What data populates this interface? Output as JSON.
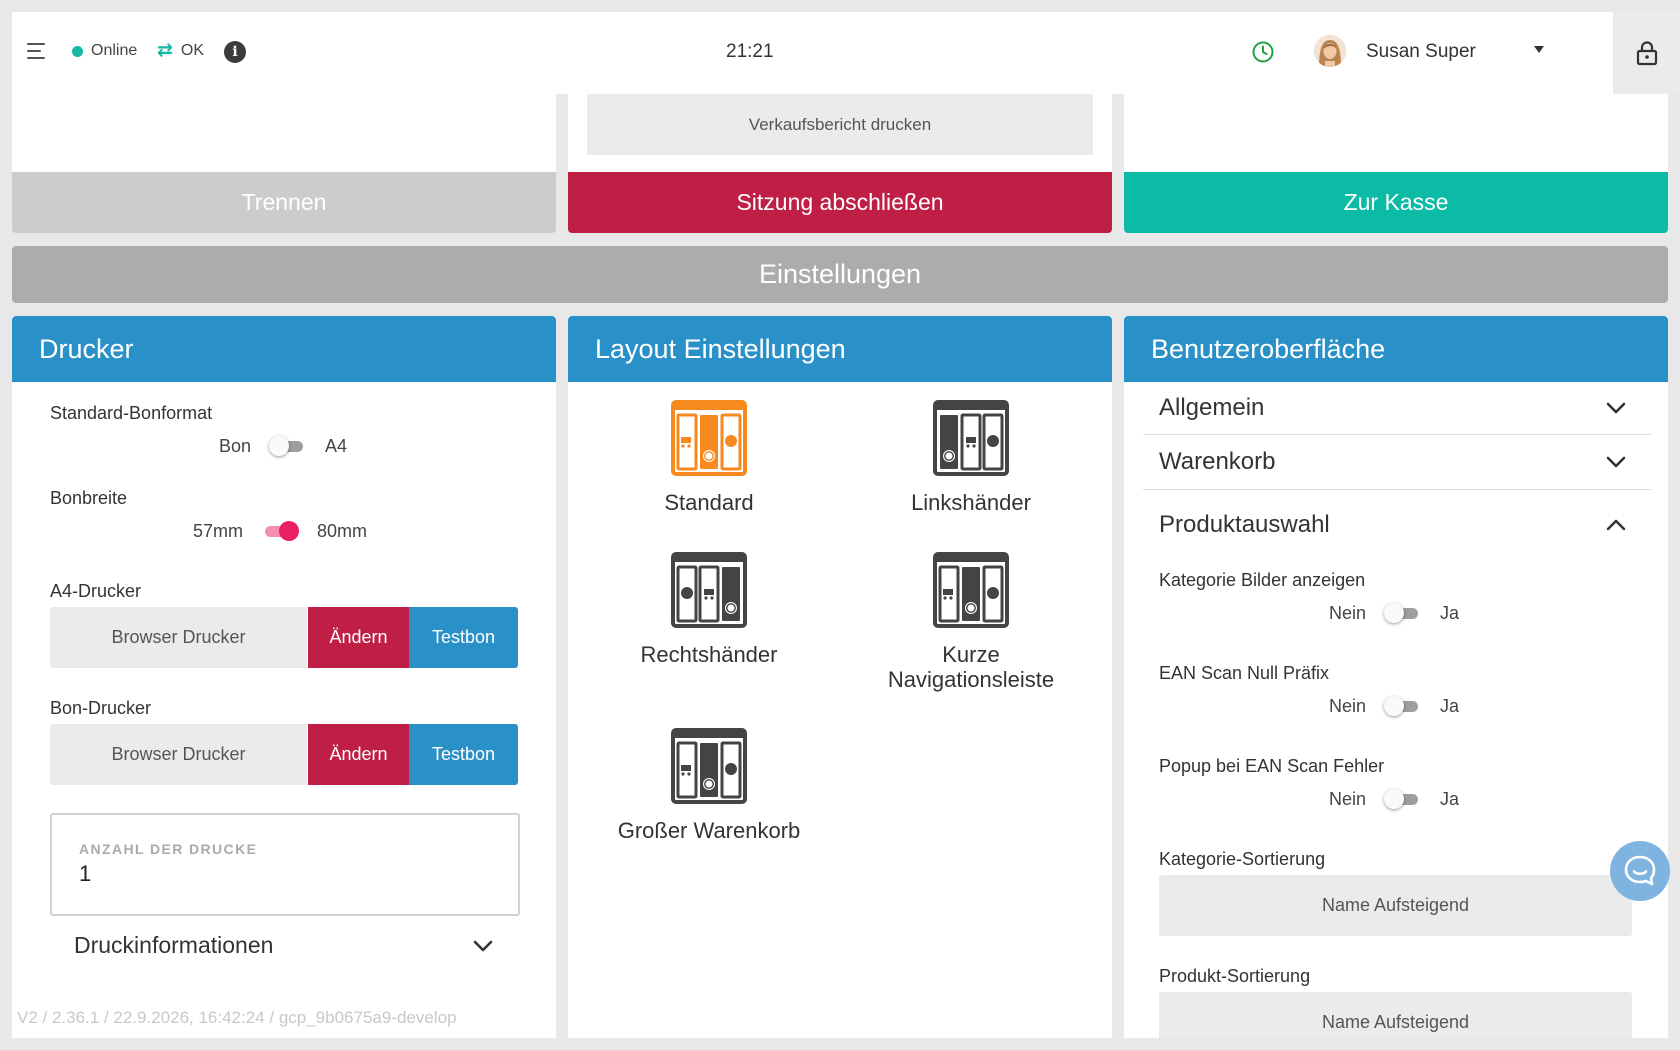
{
  "topbar": {
    "status_online": "Online",
    "status_sync": "OK",
    "clock": "21:21",
    "user_name": "Susan Super"
  },
  "actions": {
    "print_report": "Verkaufsbericht drucken",
    "split": "Trennen",
    "close_session": "Sitzung abschließen",
    "to_checkout": "Zur Kasse"
  },
  "settings_title": "Einstellungen",
  "printer": {
    "title": "Drucker",
    "receipt_format_label": "Standard-Bonformat",
    "receipt_format_off": "Bon",
    "receipt_format_on": "A4",
    "receipt_format_enabled": false,
    "receipt_width_label": "Bonbreite",
    "receipt_width_off": "57mm",
    "receipt_width_on": "80mm",
    "receipt_width_enabled": true,
    "a4_printer_label": "A4-Drucker",
    "a4_printer_name": "Browser Drucker",
    "receipt_printer_label": "Bon-Drucker",
    "receipt_printer_name": "Browser Drucker",
    "change_button": "Ändern",
    "test_button": "Testbon",
    "copies_label": "ANZAHL DER DRUCKE",
    "copies_value": "1",
    "print_info": "Druckinformationen",
    "version": "V2 / 2.36.1 / 22.9.2026, 16:42:24 / gcp_9b0675a9-develop"
  },
  "layout": {
    "title": "Layout Einstellungen",
    "options": [
      {
        "name": "Standard",
        "selected": true
      },
      {
        "name": "Linkshänder",
        "selected": false
      },
      {
        "name": "Rechtshänder",
        "selected": false
      },
      {
        "name": "Kurze Navigationsleiste",
        "selected": false
      },
      {
        "name": "Großer Warenkorb",
        "selected": false
      }
    ]
  },
  "ui": {
    "title": "Benutzeroberfläche",
    "sections": {
      "general": "Allgemein",
      "cart": "Warenkorb",
      "product_selection": "Produktauswahl"
    },
    "show_category_images_label": "Kategorie Bilder anzeigen",
    "ean_zero_prefix_label": "EAN Scan Null Präfix",
    "ean_error_popup_label": "Popup bei EAN Scan Fehler",
    "no": "Nein",
    "yes": "Ja",
    "category_sort_label": "Kategorie-Sortierung",
    "category_sort_value": "Name Aufsteigend",
    "product_sort_label": "Produkt-Sortierung",
    "product_sort_value": "Name Aufsteigend"
  },
  "colors": {
    "primary_blue": "#2a90c8",
    "danger_red": "#bf1e45",
    "teal": "#0cbba5",
    "orange": "#f68a1e",
    "toggle_pink": "#e91e63"
  }
}
